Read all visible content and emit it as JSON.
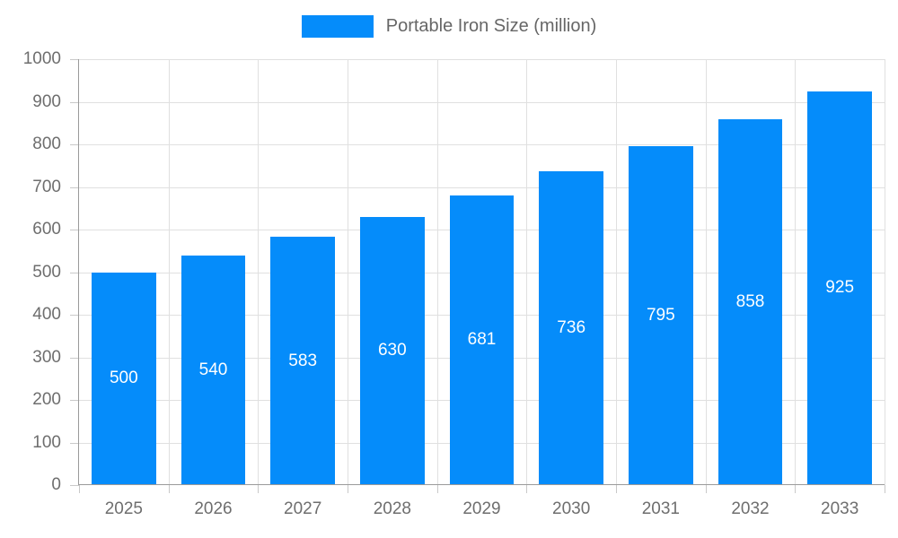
{
  "chart_data": {
    "type": "bar",
    "title": "",
    "legend": {
      "label": "Portable Iron Size (million)",
      "position": "top"
    },
    "categories": [
      "2025",
      "2026",
      "2027",
      "2028",
      "2029",
      "2030",
      "2031",
      "2032",
      "2033"
    ],
    "values": [
      500,
      540,
      583,
      630,
      681,
      736,
      795,
      858,
      925
    ],
    "xlabel": "",
    "ylabel": "",
    "ylim": [
      0,
      1000
    ],
    "ytick_step": 100,
    "grid": true,
    "bar_percentage": 0.72,
    "colors": {
      "bar": "#058cfa",
      "grid": "#e0e0e0",
      "axis": "#9a9a9a",
      "tick": "#c9c9c9",
      "tick_label": "#6e6e6e",
      "legend_text": "#666666",
      "bar_label": "#ffffff",
      "background": "#ffffff"
    }
  }
}
